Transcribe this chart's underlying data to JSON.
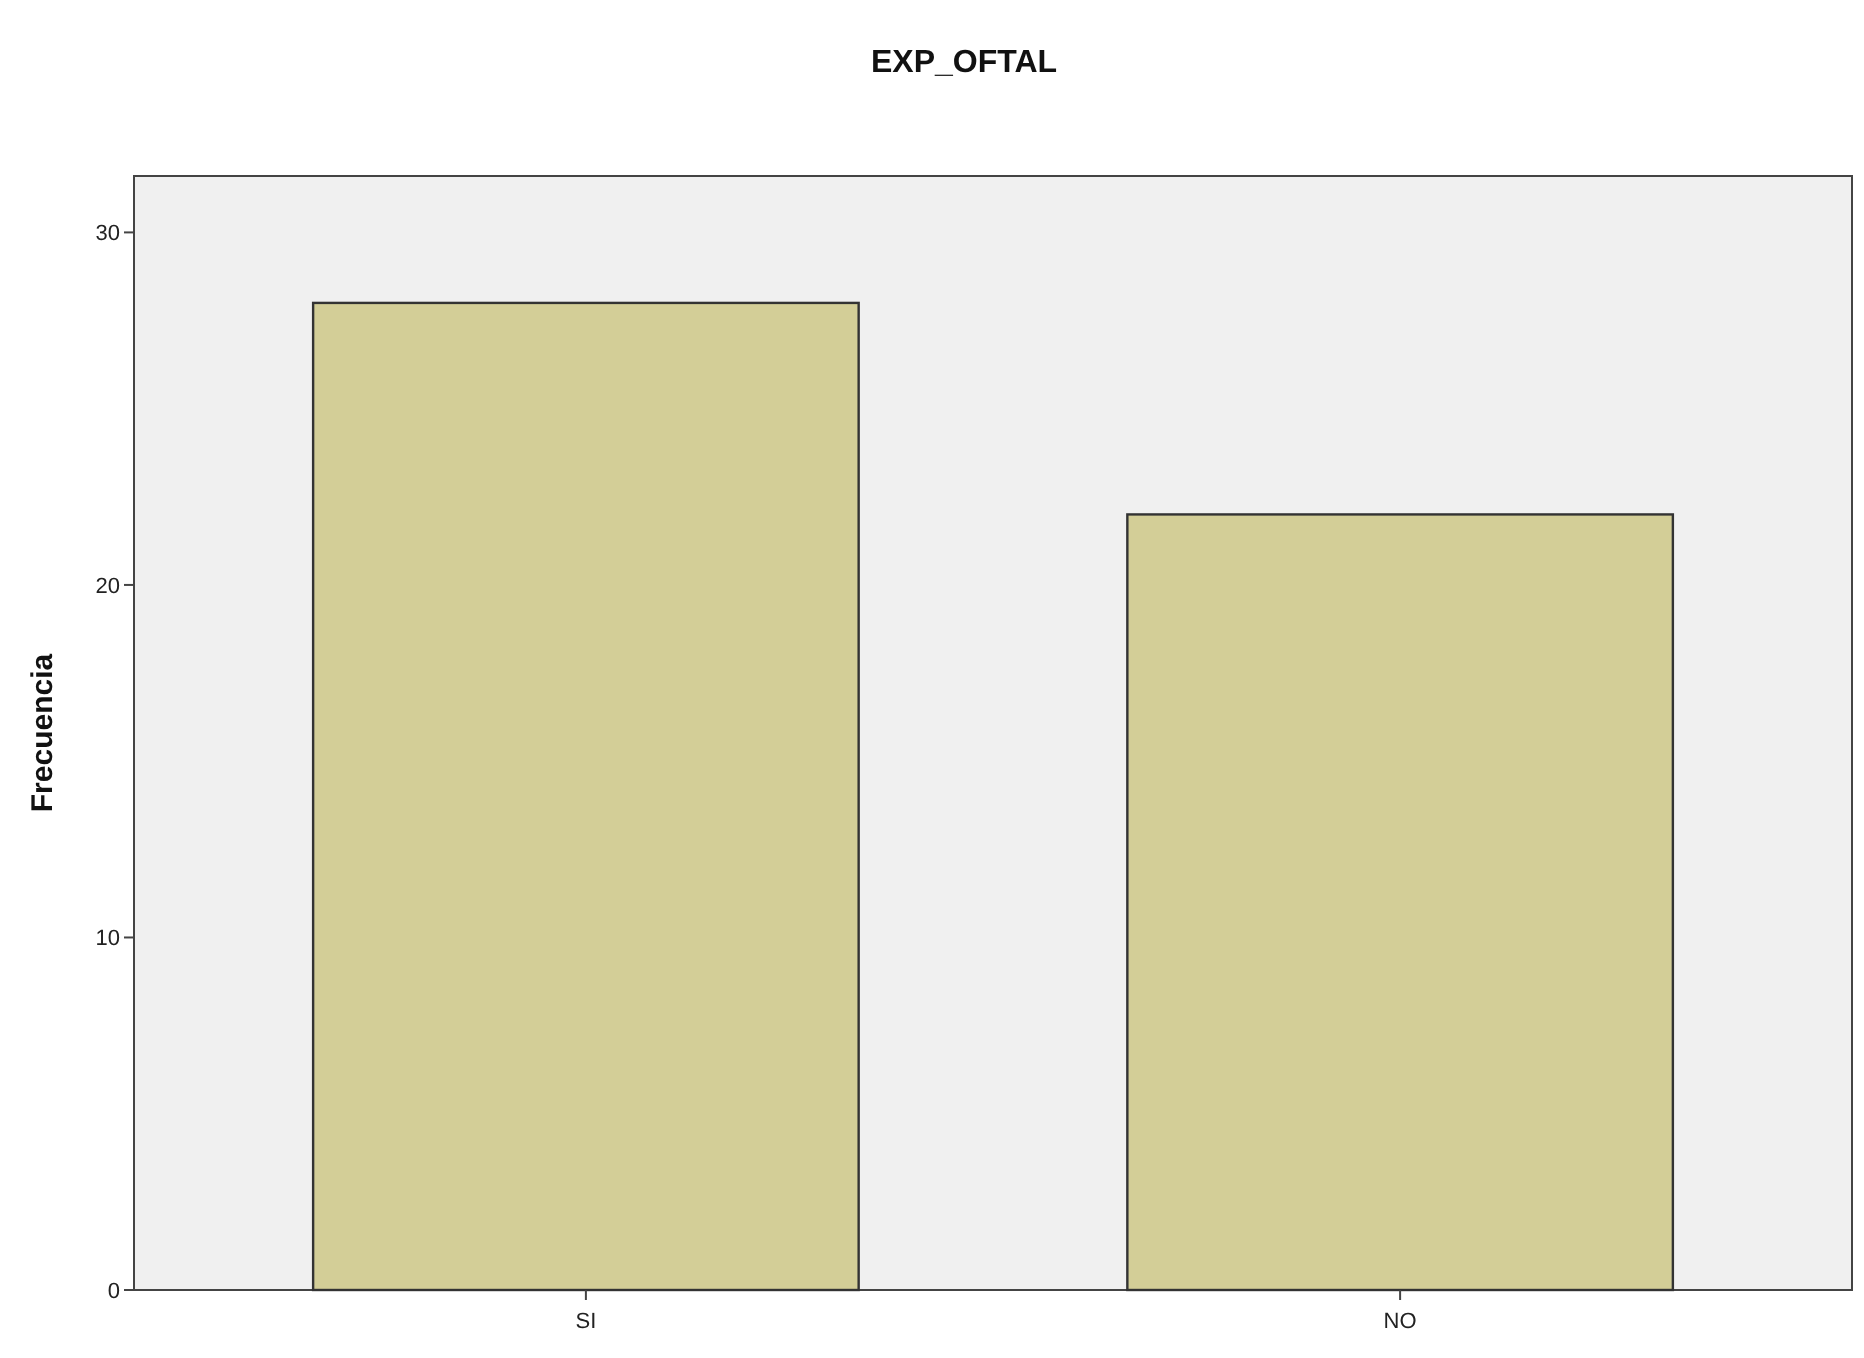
{
  "chart_data": {
    "type": "bar",
    "title": "EXP_OFTAL",
    "ylabel": "Frecuencia",
    "categories": [
      "SI",
      "NO"
    ],
    "values": [
      28,
      22
    ],
    "color": "#d3ce97",
    "ylim": [
      0,
      31.6
    ],
    "yticks": [
      0,
      10,
      20,
      30
    ]
  }
}
